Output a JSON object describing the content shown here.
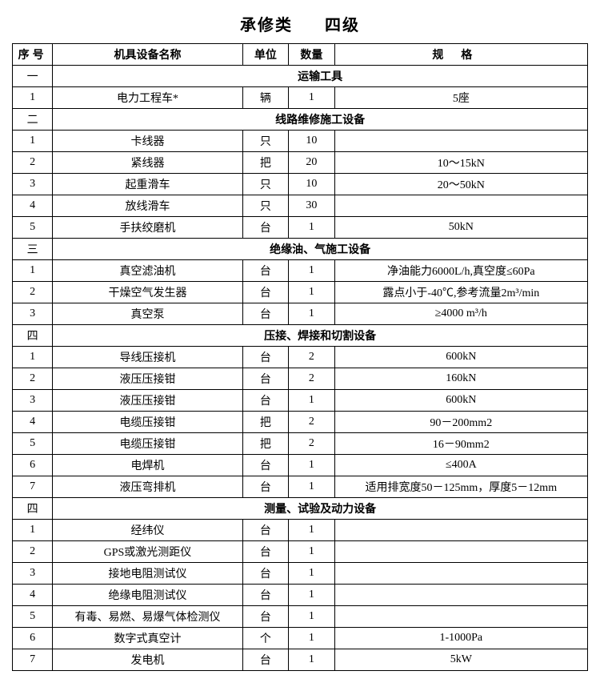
{
  "title_left": "承修类",
  "title_right": "四级",
  "headers": {
    "seq": "序号",
    "name": "机具设备名称",
    "unit": "单位",
    "qty": "数量",
    "spec": "规格"
  },
  "sections": [
    {
      "seq": "一",
      "title": "运输工具",
      "rows": [
        {
          "no": "1",
          "name": "电力工程车*",
          "unit": "辆",
          "qty": "1",
          "spec": "5座"
        }
      ]
    },
    {
      "seq": "二",
      "title": "线路维修施工设备",
      "rows": [
        {
          "no": "1",
          "name": "卡线器",
          "unit": "只",
          "qty": "10",
          "spec": ""
        },
        {
          "no": "2",
          "name": "紧线器",
          "unit": "把",
          "qty": "20",
          "spec": "10～15kN"
        },
        {
          "no": "3",
          "name": "起重滑车",
          "unit": "只",
          "qty": "10",
          "spec": "20～50kN"
        },
        {
          "no": "4",
          "name": "放线滑车",
          "unit": "只",
          "qty": "30",
          "spec": ""
        },
        {
          "no": "5",
          "name": "手扶绞磨机",
          "unit": "台",
          "qty": "1",
          "spec": "50kN"
        }
      ]
    },
    {
      "seq": "三",
      "title": "绝缘油、气施工设备",
      "rows": [
        {
          "no": "1",
          "name": "真空滤油机",
          "unit": "台",
          "qty": "1",
          "spec": "净油能力6000L/h,真空度≤60Pa"
        },
        {
          "no": "2",
          "name": "干燥空气发生器",
          "unit": "台",
          "qty": "1",
          "spec": "露点小于-40℃,参考流量2m³/min"
        },
        {
          "no": "3",
          "name": "真空泵",
          "unit": "台",
          "qty": "1",
          "spec": "≥4000 m³/h"
        }
      ]
    },
    {
      "seq": "四",
      "title": "压接、焊接和切割设备",
      "rows": [
        {
          "no": "1",
          "name": "导线压接机",
          "unit": "台",
          "qty": "2",
          "spec": "600kN"
        },
        {
          "no": "2",
          "name": "液压压接钳",
          "unit": "台",
          "qty": "2",
          "spec": "160kN"
        },
        {
          "no": "3",
          "name": "液压压接钳",
          "unit": "台",
          "qty": "1",
          "spec": "600kN"
        },
        {
          "no": "4",
          "name": "电缆压接钳",
          "unit": "把",
          "qty": "2",
          "spec": "90－200mm2"
        },
        {
          "no": "5",
          "name": "电缆压接钳",
          "unit": "把",
          "qty": "2",
          "spec": "16－90mm2"
        },
        {
          "no": "6",
          "name": "电焊机",
          "unit": "台",
          "qty": "1",
          "spec": "≤400A"
        },
        {
          "no": "7",
          "name": "液压弯排机",
          "unit": "台",
          "qty": "1",
          "spec": "适用排宽度50－125mm，厚度5－12mm"
        }
      ]
    },
    {
      "seq": "四",
      "title": "测量、试验及动力设备",
      "rows": [
        {
          "no": "1",
          "name": "经纬仪",
          "unit": "台",
          "qty": "1",
          "spec": ""
        },
        {
          "no": "2",
          "name": "GPS或激光测距仪",
          "unit": "台",
          "qty": "1",
          "spec": ""
        },
        {
          "no": "3",
          "name": "接地电阻测试仪",
          "unit": "台",
          "qty": "1",
          "spec": ""
        },
        {
          "no": "4",
          "name": "绝缘电阻测试仪",
          "unit": "台",
          "qty": "1",
          "spec": ""
        },
        {
          "no": "5",
          "name": "有毒、易燃、易爆气体检测仪",
          "unit": "台",
          "qty": "1",
          "spec": ""
        },
        {
          "no": "6",
          "name": "数字式真空计",
          "unit": "个",
          "qty": "1",
          "spec": "1-1000Pa"
        },
        {
          "no": "7",
          "name": "发电机",
          "unit": "台",
          "qty": "1",
          "spec": "5kW"
        }
      ]
    }
  ]
}
